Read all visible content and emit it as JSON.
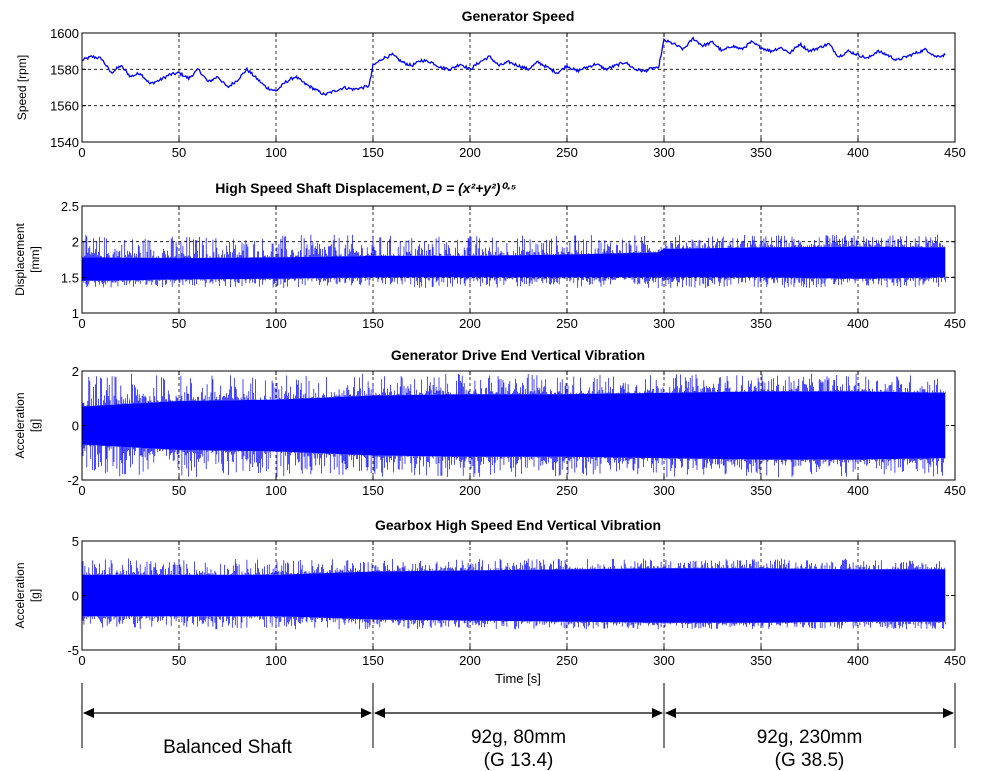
{
  "chart_data": [
    {
      "type": "line",
      "title": "Generator Speed",
      "ylabel": "Speed [rpm]",
      "xlim": [
        0,
        450
      ],
      "ylim": [
        1540,
        1600
      ],
      "xticks": [
        0,
        50,
        100,
        150,
        200,
        250,
        300,
        350,
        400,
        450
      ],
      "yticks": [
        1540,
        1560,
        1580,
        1600
      ],
      "grid": true,
      "series": [
        {
          "color": "#0000ff",
          "x": [
            0,
            5,
            10,
            15,
            20,
            25,
            30,
            35,
            40,
            45,
            50,
            55,
            60,
            65,
            70,
            75,
            80,
            85,
            90,
            95,
            100,
            105,
            110,
            115,
            120,
            125,
            130,
            135,
            140,
            145,
            148,
            150,
            155,
            160,
            165,
            170,
            175,
            180,
            185,
            190,
            195,
            200,
            205,
            210,
            215,
            220,
            225,
            230,
            235,
            240,
            245,
            250,
            255,
            260,
            265,
            270,
            275,
            280,
            285,
            290,
            295,
            297,
            300,
            305,
            310,
            315,
            320,
            325,
            330,
            335,
            340,
            345,
            350,
            355,
            360,
            365,
            370,
            375,
            380,
            385,
            390,
            395,
            400,
            405,
            410,
            415,
            420,
            425,
            430,
            435,
            440,
            445
          ],
          "y": [
            1585,
            1587,
            1586,
            1578,
            1582,
            1576,
            1578,
            1572,
            1574,
            1577,
            1578,
            1575,
            1580,
            1573,
            1576,
            1570,
            1574,
            1580,
            1575,
            1570,
            1568,
            1573,
            1576,
            1572,
            1569,
            1566,
            1568,
            1570,
            1569,
            1570,
            1571,
            1582,
            1586,
            1588,
            1584,
            1582,
            1585,
            1584,
            1581,
            1580,
            1583,
            1580,
            1584,
            1587,
            1582,
            1584,
            1582,
            1580,
            1584,
            1581,
            1578,
            1582,
            1579,
            1581,
            1583,
            1580,
            1582,
            1584,
            1580,
            1579,
            1581,
            1580,
            1596,
            1594,
            1591,
            1597,
            1593,
            1595,
            1590,
            1593,
            1591,
            1595,
            1592,
            1590,
            1592,
            1589,
            1594,
            1590,
            1592,
            1594,
            1587,
            1590,
            1588,
            1586,
            1590,
            1588,
            1585,
            1587,
            1589,
            1591,
            1587,
            1588
          ]
        }
      ]
    },
    {
      "type": "line",
      "title": "High Speed Shaft Displacement, ",
      "title_math": "D = (x²+y²)⁰·⁵",
      "ylabel": "Displacement [mm]",
      "xlim": [
        0,
        450
      ],
      "ylim": [
        1,
        2.5
      ],
      "xticks": [
        0,
        50,
        100,
        150,
        200,
        250,
        300,
        350,
        400,
        450
      ],
      "yticks": [
        1,
        1.5,
        2,
        2.5
      ],
      "grid": true,
      "series": [
        {
          "color": "#0000ff",
          "x": [
            0,
            50,
            100,
            150,
            200,
            250,
            297,
            300,
            350,
            400,
            445
          ],
          "mean": [
            1.58,
            1.57,
            1.6,
            1.62,
            1.63,
            1.65,
            1.67,
            1.7,
            1.72,
            1.72,
            1.72
          ],
          "envelope_low": [
            1.45,
            1.47,
            1.48,
            1.5,
            1.5,
            1.5,
            1.5,
            1.5,
            1.5,
            1.48,
            1.5
          ],
          "envelope_high": [
            1.78,
            1.77,
            1.78,
            1.8,
            1.8,
            1.82,
            1.85,
            1.9,
            1.92,
            1.93,
            1.92
          ],
          "peak_max": 2.1,
          "peak_min": 1.35
        }
      ]
    },
    {
      "type": "line",
      "title": "Generator Drive End Vertical Vibration",
      "ylabel": "Acceleration [g]",
      "xlim": [
        0,
        450
      ],
      "ylim": [
        -2,
        2
      ],
      "xticks": [
        0,
        50,
        100,
        150,
        200,
        250,
        300,
        350,
        400,
        450
      ],
      "yticks": [
        -2,
        0,
        2
      ],
      "grid": true,
      "series": [
        {
          "color": "#0000ff",
          "x": [
            0,
            50,
            100,
            150,
            200,
            250,
            300,
            350,
            400,
            445
          ],
          "envelope_high": [
            0.7,
            0.9,
            0.95,
            1.1,
            1.15,
            1.15,
            1.2,
            1.25,
            1.25,
            1.2
          ],
          "envelope_low": [
            -0.7,
            -0.9,
            -0.95,
            -1.1,
            -1.15,
            -1.15,
            -1.2,
            -1.25,
            -1.25,
            -1.2
          ],
          "peak_max": 1.9,
          "peak_min": -1.9
        }
      ]
    },
    {
      "type": "line",
      "title": "Gearbox High Speed End Vertical Vibration",
      "ylabel": "Acceleration [g]",
      "xlabel": "Time [s]",
      "xlim": [
        0,
        450
      ],
      "ylim": [
        -5,
        5
      ],
      "xticks": [
        0,
        50,
        100,
        150,
        200,
        250,
        300,
        350,
        400,
        450
      ],
      "yticks": [
        -5,
        0,
        5
      ],
      "grid": true,
      "series": [
        {
          "color": "#0000ff",
          "x": [
            0,
            50,
            100,
            150,
            200,
            250,
            300,
            350,
            400,
            445
          ],
          "envelope_high": [
            1.9,
            1.9,
            1.9,
            2.2,
            2.3,
            2.4,
            2.5,
            2.5,
            2.4,
            2.4
          ],
          "envelope_low": [
            -1.9,
            -1.9,
            -1.9,
            -2.2,
            -2.3,
            -2.4,
            -2.5,
            -2.5,
            -2.4,
            -2.4
          ],
          "peak_max": 3.4,
          "peak_min": -3.1
        }
      ]
    }
  ],
  "phases": [
    {
      "start": 0,
      "end": 150,
      "line1": "Balanced Shaft",
      "line2": ""
    },
    {
      "start": 150,
      "end": 300,
      "line1": "92g, 80mm",
      "line2": "(G 13.4)"
    },
    {
      "start": 300,
      "end": 450,
      "line1": "92g, 230mm",
      "line2": "(G 38.5)"
    }
  ]
}
